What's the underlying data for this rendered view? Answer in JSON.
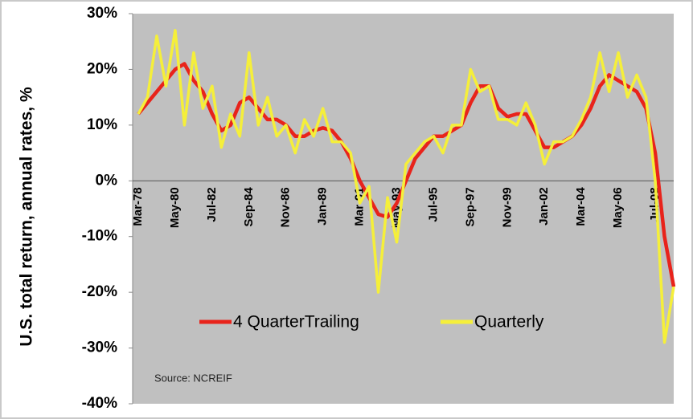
{
  "chart_data": {
    "type": "line",
    "y_label": "U.S. total return, annual rates, %",
    "annotation": "Source:  NCREIF",
    "categories": [
      "Mar-78",
      null,
      null,
      null,
      "May-80",
      null,
      null,
      null,
      "Jul-82",
      null,
      null,
      null,
      "Sep-84",
      null,
      null,
      null,
      "Nov-86",
      null,
      null,
      null,
      "Jan-89",
      null,
      null,
      null,
      "Mar-91",
      null,
      null,
      null,
      "May-93",
      null,
      null,
      null,
      "Jul-95",
      null,
      null,
      null,
      "Sep-97",
      null,
      null,
      null,
      "Nov-99",
      null,
      null,
      null,
      "Jan-02",
      null,
      null,
      null,
      "Mar-04",
      null,
      null,
      null,
      "May-06",
      null,
      null,
      null,
      "Jul-08",
      null,
      null
    ],
    "series": [
      {
        "name": "4 QuarterTrailing",
        "color": "#e8231b",
        "values": [
          12,
          14,
          16,
          18,
          20,
          21,
          18,
          16,
          12,
          9,
          10,
          14,
          15,
          13,
          11,
          11,
          10,
          8,
          8,
          9,
          9.5,
          9,
          7,
          4,
          0,
          -3,
          -6,
          -6.5,
          -4,
          0,
          4,
          6,
          8,
          8,
          9,
          10,
          14,
          17,
          17,
          13,
          11.5,
          12,
          12,
          9,
          6,
          6,
          7,
          8,
          10,
          13,
          17,
          19,
          18,
          17,
          16,
          13,
          5,
          -10,
          -19
        ]
      },
      {
        "name": "Quarterly",
        "color": "#f5ef3a",
        "values": [
          12,
          15,
          26,
          17,
          27,
          10,
          23,
          13,
          17,
          6,
          12,
          8,
          23,
          10,
          15,
          8,
          10,
          5,
          11,
          8,
          13,
          7,
          7,
          5,
          -4,
          -1,
          -20,
          -3,
          -11,
          3,
          5,
          7,
          8,
          5,
          10,
          10,
          20,
          16,
          17,
          11,
          11,
          10,
          14,
          10,
          3,
          7,
          7,
          8,
          11,
          15,
          23,
          16,
          23,
          15,
          19,
          15,
          0,
          -29,
          -19
        ]
      }
    ],
    "ylim": [
      -40,
      30
    ],
    "yticks": [
      {
        "value": -40,
        "label": "-40%"
      },
      {
        "value": -30,
        "label": "-30%"
      },
      {
        "value": -20,
        "label": "-20%"
      },
      {
        "value": -10,
        "label": "-10%"
      },
      {
        "value": 0,
        "label": "0%"
      },
      {
        "value": 10,
        "label": "10%"
      },
      {
        "value": 20,
        "label": "20%"
      },
      {
        "value": 30,
        "label": "30%"
      }
    ]
  }
}
